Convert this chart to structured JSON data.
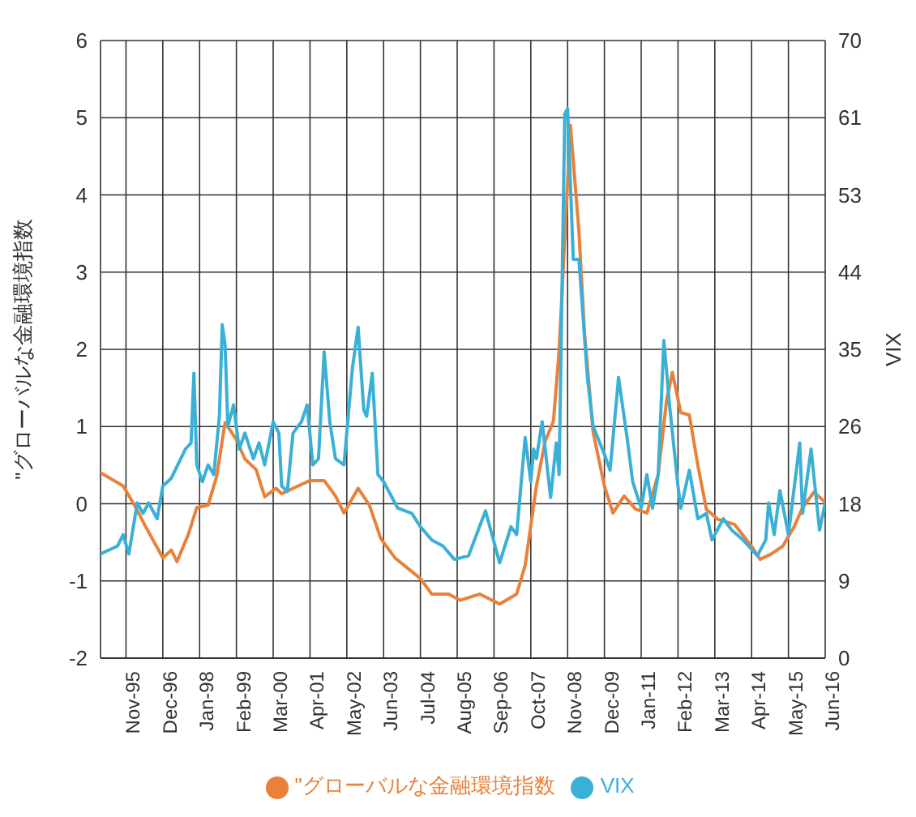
{
  "chart_data": {
    "type": "line",
    "ylabel": "\"グローバルな金融環境指数",
    "y2label": "VIX",
    "xlim": [
      "1995-02",
      "2016-06"
    ],
    "xticks": [
      {
        "value": "1995-11",
        "label": "Nov-95"
      },
      {
        "value": "1996-12",
        "label": "Dec-96"
      },
      {
        "value": "1998-01",
        "label": "Jan-98"
      },
      {
        "value": "1999-02",
        "label": "Feb-99"
      },
      {
        "value": "2000-03",
        "label": "Mar-00"
      },
      {
        "value": "2001-04",
        "label": "Apr-01"
      },
      {
        "value": "2002-05",
        "label": "May-02"
      },
      {
        "value": "2003-06",
        "label": "Jun-03"
      },
      {
        "value": "2004-07",
        "label": "Jul-04"
      },
      {
        "value": "2005-08",
        "label": "Aug-05"
      },
      {
        "value": "2006-09",
        "label": "Sep-06"
      },
      {
        "value": "2007-10",
        "label": "Oct-07"
      },
      {
        "value": "2008-11",
        "label": "Nov-08"
      },
      {
        "value": "2009-12",
        "label": "Dec-09"
      },
      {
        "value": "2011-01",
        "label": "Jan-11"
      },
      {
        "value": "2012-02",
        "label": "Feb-12"
      },
      {
        "value": "2013-03",
        "label": "Mar-13"
      },
      {
        "value": "2014-04",
        "label": "Apr-14"
      },
      {
        "value": "2015-05",
        "label": "May-15"
      },
      {
        "value": "2016-06",
        "label": "Jun-16"
      }
    ],
    "ylim": [
      -2,
      6
    ],
    "yticks": [
      -2,
      -1,
      0,
      1,
      2,
      3,
      4,
      5,
      6
    ],
    "y2lim": [
      0,
      70
    ],
    "y2ticks": [
      0,
      {
        "value": 8.75,
        "label": "9"
      },
      {
        "value": 17.5,
        "label": "18"
      },
      {
        "value": 26.25,
        "label": "26"
      },
      35,
      {
        "value": 43.75,
        "label": "44"
      },
      {
        "value": 52.5,
        "label": "53"
      },
      {
        "value": 61.25,
        "label": "61"
      },
      70
    ],
    "grid": true,
    "legend": "bottom",
    "series": [
      {
        "name": "\"グローバルな金融環境指数",
        "color": "#e8813a",
        "x": [
          "1995-02",
          "1995-03",
          "1995-10",
          "1996-02",
          "1996-06",
          "1996-12",
          "1997-03",
          "1997-05",
          "1997-09",
          "1997-12",
          "1998-04",
          "1998-07",
          "1998-10",
          "1999-02",
          "1999-05",
          "1999-09",
          "1999-12",
          "2000-04",
          "2000-06",
          "2000-10",
          "2001-04",
          "2001-09",
          "2002-01",
          "2002-04",
          "2002-09",
          "2003-01",
          "2003-05",
          "2003-10",
          "2004-02",
          "2004-07",
          "2004-11",
          "2005-05",
          "2005-09",
          "2006-04",
          "2006-11",
          "2007-05",
          "2007-08",
          "2007-12",
          "2008-03",
          "2008-06",
          "2008-08",
          "2008-12",
          "2009-03",
          "2009-05",
          "2009-08",
          "2009-12",
          "2010-03",
          "2010-07",
          "2010-11",
          "2011-03",
          "2011-07",
          "2011-10",
          "2011-12",
          "2012-03",
          "2012-06",
          "2012-09",
          "2012-12",
          "2013-04",
          "2013-10",
          "2014-04",
          "2014-07",
          "2014-11",
          "2015-03",
          "2015-07",
          "2015-10",
          "2016-02",
          "2016-06"
        ],
        "values": [
          0.4,
          0.38,
          0.23,
          -0.02,
          -0.3,
          -0.7,
          -0.6,
          -0.75,
          -0.4,
          -0.05,
          -0.02,
          0.35,
          1.05,
          0.83,
          0.58,
          0.44,
          0.09,
          0.2,
          0.13,
          0.2,
          0.3,
          0.3,
          0.1,
          -0.12,
          0.2,
          -0.02,
          -0.45,
          -0.7,
          -0.82,
          -0.97,
          -1.17,
          -1.17,
          -1.25,
          -1.17,
          -1.3,
          -1.17,
          -0.8,
          0.23,
          0.8,
          1.07,
          1.98,
          4.9,
          3.53,
          2.2,
          0.93,
          0.23,
          -0.12,
          0.1,
          -0.07,
          -0.12,
          0.38,
          1.35,
          1.7,
          1.18,
          1.15,
          0.5,
          -0.07,
          -0.2,
          -0.27,
          -0.55,
          -0.72,
          -0.65,
          -0.55,
          -0.3,
          -0.05,
          0.15,
          0.02
        ]
      },
      {
        "name": "VIX",
        "color": "#3bb0d6",
        "axis": "y2",
        "x": [
          "1995-02",
          "1995-08",
          "1995-10",
          "1995-12",
          "1996-03",
          "1996-05",
          "1996-07",
          "1996-10",
          "1996-12",
          "1997-03",
          "1997-08",
          "1997-10",
          "1997-11",
          "1997-12",
          "1998-02",
          "1998-04",
          "1998-06",
          "1998-08",
          "1998-09",
          "1998-10",
          "1998-11",
          "1999-01",
          "1999-03",
          "1999-05",
          "1999-08",
          "1999-10",
          "1999-12",
          "2000-03",
          "2000-05",
          "2000-06",
          "2000-08",
          "2000-10",
          "2001-01",
          "2001-03",
          "2001-05",
          "2001-07",
          "2001-09",
          "2001-11",
          "2002-01",
          "2002-04",
          "2002-07",
          "2002-09",
          "2002-11",
          "2002-12",
          "2003-02",
          "2003-04",
          "2003-06",
          "2003-11",
          "2004-04",
          "2004-07",
          "2004-11",
          "2005-03",
          "2005-07",
          "2005-12",
          "2006-06",
          "2006-11",
          "2007-03",
          "2007-05",
          "2007-08",
          "2007-10",
          "2007-11",
          "2007-12",
          "2008-02",
          "2008-05",
          "2008-07",
          "2008-08",
          "2008-10",
          "2008-11",
          "2009-01",
          "2009-03",
          "2009-06",
          "2009-08",
          "2009-12",
          "2010-02",
          "2010-05",
          "2010-08",
          "2010-10",
          "2011-01",
          "2011-03",
          "2011-05",
          "2011-07",
          "2011-09",
          "2011-11",
          "2012-02",
          "2012-03",
          "2012-06",
          "2012-09",
          "2012-12",
          "2013-02",
          "2013-06",
          "2013-09",
          "2014-01",
          "2014-06",
          "2014-09",
          "2014-10",
          "2014-12",
          "2015-02",
          "2015-05",
          "2015-09",
          "2015-10",
          "2016-01",
          "2016-04",
          "2016-06"
        ],
        "values": [
          11.8,
          12.7,
          14,
          11.8,
          17.6,
          16.4,
          17.6,
          15.8,
          19.5,
          20.4,
          23.7,
          24.4,
          32.3,
          21.9,
          20,
          21.9,
          20.8,
          27.4,
          37.8,
          35.5,
          26.3,
          28.7,
          23.7,
          25.5,
          22.6,
          24.4,
          21.9,
          26.8,
          25.5,
          19.5,
          18.9,
          25.5,
          26.8,
          28.7,
          21.9,
          22.6,
          34.7,
          26.8,
          22.6,
          21.9,
          32.9,
          37.5,
          28.1,
          27.4,
          32.3,
          20.8,
          20,
          17,
          16.4,
          14.9,
          13.4,
          12.7,
          11.2,
          11.6,
          16.7,
          10.8,
          14.9,
          14,
          25,
          20,
          23.7,
          22.6,
          26.8,
          18.2,
          24.4,
          20.8,
          61.7,
          62.3,
          45.2,
          45.2,
          31.8,
          26.3,
          23.1,
          21.3,
          31.8,
          25,
          20,
          17,
          20.8,
          17,
          20.8,
          36,
          28.7,
          19.5,
          17,
          21.3,
          15.8,
          16.4,
          13.4,
          15.8,
          14.5,
          13.4,
          11.6,
          13.4,
          17.6,
          14,
          19,
          14,
          24.4,
          16.4,
          23.7,
          14.5,
          17.6
        ]
      }
    ]
  }
}
